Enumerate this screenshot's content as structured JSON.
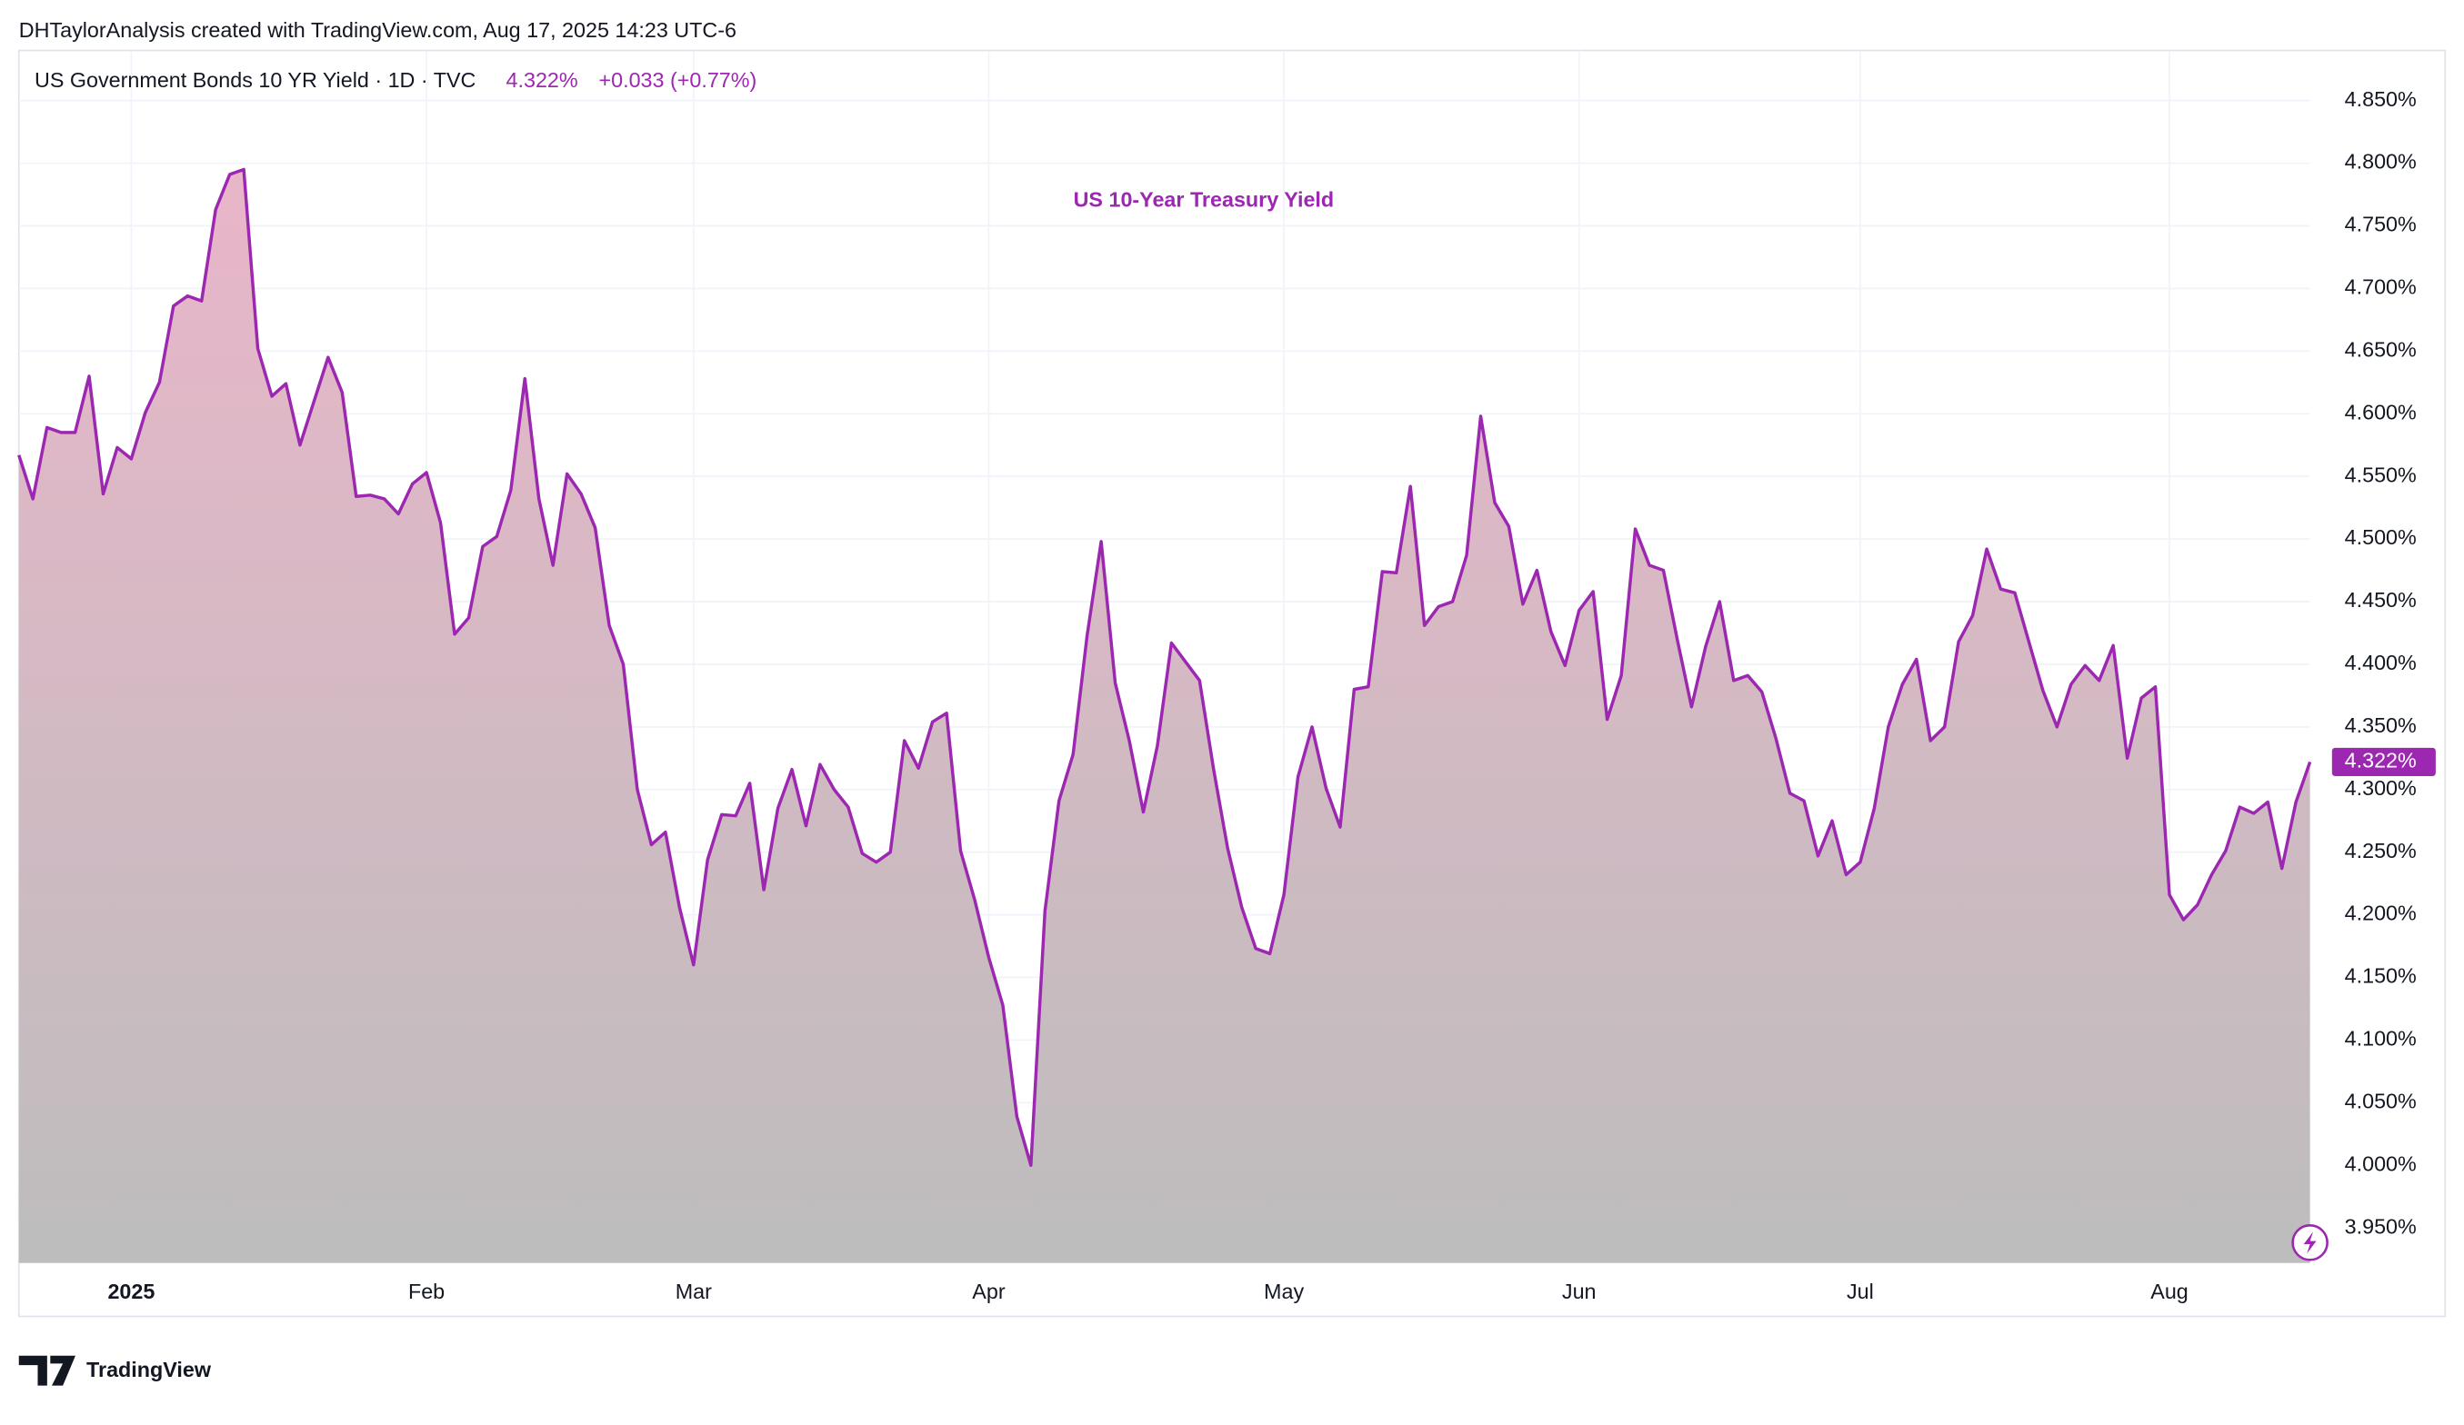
{
  "header": "DHTaylorAnalysis created with TradingView.com, Aug 17, 2025 14:23 UTC-6",
  "legend": {
    "symbol": "US Government Bonds 10 YR Yield · 1D · TVC",
    "price": "4.322%",
    "change": "+0.033 (+0.77%)"
  },
  "footer": "TradingView",
  "chart_data": {
    "type": "area",
    "title": "US 10-Year Treasury Yield",
    "categories": [
      null,
      null,
      null,
      null,
      null,
      null,
      null,
      null,
      "2025",
      null,
      null,
      null,
      null,
      null,
      null,
      null,
      null,
      null,
      null,
      null,
      null,
      null,
      null,
      null,
      null,
      null,
      null,
      null,
      null,
      "Feb",
      null,
      null,
      null,
      null,
      null,
      null,
      null,
      null,
      null,
      null,
      null,
      null,
      null,
      null,
      null,
      null,
      null,
      null,
      "Mar",
      null,
      null,
      null,
      null,
      null,
      null,
      null,
      null,
      null,
      null,
      null,
      null,
      null,
      null,
      null,
      null,
      null,
      null,
      null,
      null,
      "Apr",
      null,
      null,
      null,
      null,
      null,
      null,
      null,
      null,
      null,
      null,
      null,
      null,
      null,
      null,
      null,
      null,
      null,
      null,
      null,
      null,
      "May",
      null,
      null,
      null,
      null,
      null,
      null,
      null,
      null,
      null,
      null,
      null,
      null,
      null,
      null,
      null,
      null,
      null,
      null,
      null,
      null,
      "Jun",
      null,
      null,
      null,
      null,
      null,
      null,
      null,
      null,
      null,
      null,
      null,
      null,
      null,
      null,
      null,
      null,
      null,
      null,
      null,
      "Jul",
      null,
      null,
      null,
      null,
      null,
      null,
      null,
      null,
      null,
      null,
      null,
      null,
      null,
      null,
      null,
      null,
      null,
      null,
      null,
      null,
      null,
      "Aug",
      null,
      null,
      null,
      null,
      null,
      null,
      null,
      null,
      null,
      null
    ],
    "values": [
      4.567,
      4.532,
      4.589,
      4.585,
      4.585,
      4.63,
      4.536,
      4.573,
      4.564,
      4.601,
      4.625,
      4.686,
      4.694,
      4.69,
      4.763,
      4.791,
      4.795,
      4.652,
      4.614,
      4.624,
      4.575,
      4.61,
      4.645,
      4.617,
      4.534,
      4.535,
      4.532,
      4.52,
      4.544,
      4.553,
      4.513,
      4.424,
      4.437,
      4.494,
      4.502,
      4.539,
      4.628,
      4.532,
      4.479,
      4.552,
      4.536,
      4.509,
      4.431,
      4.4,
      4.3,
      4.256,
      4.266,
      4.206,
      4.16,
      4.244,
      4.28,
      4.279,
      4.305,
      4.22,
      4.285,
      4.316,
      4.271,
      4.32,
      4.3,
      4.286,
      4.249,
      4.242,
      4.25,
      4.339,
      4.317,
      4.354,
      4.361,
      4.251,
      4.212,
      4.166,
      4.128,
      4.039,
      4.0,
      4.203,
      4.291,
      4.328,
      4.423,
      4.498,
      4.385,
      4.339,
      4.282,
      4.335,
      4.417,
      4.402,
      4.387,
      4.316,
      4.253,
      4.206,
      4.173,
      4.169,
      4.216,
      4.31,
      4.35,
      4.301,
      4.27,
      4.38,
      4.382,
      4.474,
      4.473,
      4.542,
      4.431,
      4.446,
      4.45,
      4.487,
      4.598,
      4.529,
      4.51,
      4.448,
      4.475,
      4.426,
      4.399,
      4.443,
      4.458,
      4.356,
      4.391,
      4.508,
      4.479,
      4.475,
      4.419,
      4.366,
      4.414,
      4.45,
      4.387,
      4.391,
      4.378,
      4.341,
      4.297,
      4.291,
      4.247,
      4.275,
      4.232,
      4.242,
      4.285,
      4.35,
      4.384,
      4.404,
      4.339,
      4.35,
      4.418,
      4.439,
      4.492,
      4.46,
      4.457,
      4.418,
      4.379,
      4.35,
      4.384,
      4.399,
      4.387,
      4.415,
      4.325,
      4.373,
      4.382,
      4.216,
      4.196,
      4.208,
      4.232,
      4.251,
      4.286,
      4.281,
      4.29,
      4.237,
      4.29,
      4.322
    ],
    "value_labels": [
      null,
      null,
      null,
      null,
      null,
      null,
      null,
      null,
      null,
      null,
      null,
      null,
      null,
      null,
      null,
      null,
      null,
      null,
      null,
      null,
      null,
      null,
      null,
      null,
      null,
      null,
      null,
      null,
      null,
      null,
      null,
      null,
      null,
      null,
      null,
      null,
      null,
      null,
      null,
      null,
      null,
      null,
      null,
      null,
      null,
      null,
      null,
      null,
      null,
      null,
      null,
      null,
      null,
      null,
      null,
      null,
      null,
      null,
      null,
      null,
      null,
      null,
      null,
      null,
      null,
      null,
      null,
      null,
      null,
      null,
      null,
      null,
      null,
      null,
      null,
      null,
      null,
      null,
      null,
      null,
      null,
      null,
      null,
      null,
      null,
      null,
      null,
      null,
      null,
      null,
      null,
      null,
      null,
      null,
      null,
      null,
      null,
      null,
      null,
      null,
      null,
      null,
      null,
      null,
      null,
      null,
      null,
      null,
      null,
      null,
      null,
      null,
      null,
      null,
      null,
      null,
      null,
      null,
      null,
      null,
      null,
      null,
      null,
      null,
      null,
      null,
      null,
      null,
      null,
      null,
      null,
      null,
      null,
      null,
      null,
      null,
      null,
      null,
      null,
      null,
      null,
      null,
      null,
      null,
      null,
      null,
      null,
      null,
      null,
      null,
      null,
      null,
      null,
      null,
      null,
      null,
      null,
      null,
      null,
      null,
      null,
      null,
      null,
      "4.322%"
    ],
    "color": "#9c27b0",
    "fill_top": "#e9b6c9",
    "fill_bottom": "#bdbdbd",
    "ylim": [
      3.922,
      4.89
    ],
    "yticks": [
      {
        "value": 3.95,
        "label": "3.950%"
      },
      {
        "value": 4.0,
        "label": "4.000%"
      },
      {
        "value": 4.05,
        "label": "4.050%"
      },
      {
        "value": 4.1,
        "label": "4.100%"
      },
      {
        "value": 4.15,
        "label": "4.150%"
      },
      {
        "value": 4.2,
        "label": "4.200%"
      },
      {
        "value": 4.25,
        "label": "4.250%"
      },
      {
        "value": 4.3,
        "label": "4.300%"
      },
      {
        "value": 4.35,
        "label": "4.350%"
      },
      {
        "value": 4.4,
        "label": "4.400%"
      },
      {
        "value": 4.45,
        "label": "4.450%"
      },
      {
        "value": 4.5,
        "label": "4.500%"
      },
      {
        "value": 4.55,
        "label": "4.550%"
      },
      {
        "value": 4.6,
        "label": "4.600%"
      },
      {
        "value": 4.65,
        "label": "4.650%"
      },
      {
        "value": 4.7,
        "label": "4.700%"
      },
      {
        "value": 4.75,
        "label": "4.750%"
      },
      {
        "value": 4.8,
        "label": "4.800%"
      },
      {
        "value": 4.85,
        "label": "4.850%"
      }
    ],
    "grid": true
  }
}
